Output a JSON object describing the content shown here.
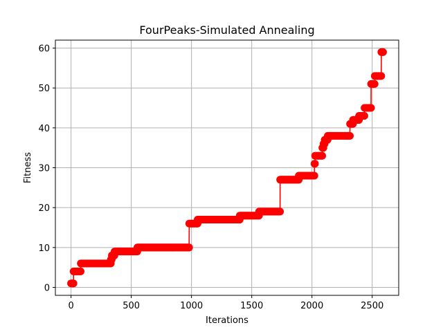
{
  "chart_data": {
    "type": "line",
    "title": "FourPeaks-Simulated Annealing",
    "xlabel": "Iterations",
    "ylabel": "Fitness",
    "xlim": [
      -130,
      2720
    ],
    "ylim": [
      -2,
      62
    ],
    "xticks": [
      0,
      500,
      1000,
      1500,
      2000,
      2500
    ],
    "yticks": [
      0,
      10,
      20,
      30,
      40,
      50,
      60
    ],
    "grid": true,
    "colors": {
      "series": "#ff0000",
      "grid": "#b0b0b0",
      "frame": "#000000"
    },
    "series": [
      {
        "marker": "circle",
        "steps": [
          [
            0,
            1
          ],
          [
            20,
            1
          ],
          [
            21,
            4
          ],
          [
            80,
            4
          ],
          [
            81,
            6
          ],
          [
            330,
            6
          ],
          [
            331,
            7
          ],
          [
            338,
            7
          ],
          [
            339,
            8
          ],
          [
            360,
            8
          ],
          [
            361,
            9
          ],
          [
            550,
            9
          ],
          [
            551,
            10
          ],
          [
            980,
            10
          ],
          [
            981,
            16
          ],
          [
            1050,
            16
          ],
          [
            1051,
            17
          ],
          [
            1400,
            17
          ],
          [
            1401,
            18
          ],
          [
            1560,
            18
          ],
          [
            1561,
            19
          ],
          [
            1735,
            19
          ],
          [
            1736,
            27
          ],
          [
            1890,
            27
          ],
          [
            1891,
            28
          ],
          [
            2020,
            28
          ],
          [
            2021,
            31
          ],
          [
            2025,
            31
          ],
          [
            2026,
            33
          ],
          [
            2085,
            33
          ],
          [
            2086,
            35
          ],
          [
            2095,
            35
          ],
          [
            2096,
            36
          ],
          [
            2105,
            36
          ],
          [
            2106,
            37
          ],
          [
            2130,
            37
          ],
          [
            2131,
            38
          ],
          [
            2315,
            38
          ],
          [
            2316,
            41
          ],
          [
            2340,
            41
          ],
          [
            2341,
            42
          ],
          [
            2390,
            42
          ],
          [
            2391,
            43
          ],
          [
            2435,
            43
          ],
          [
            2436,
            45
          ],
          [
            2490,
            45
          ],
          [
            2491,
            51
          ],
          [
            2520,
            51
          ],
          [
            2521,
            53
          ],
          [
            2575,
            53
          ],
          [
            2576,
            59
          ],
          [
            2590,
            59
          ]
        ]
      }
    ]
  }
}
